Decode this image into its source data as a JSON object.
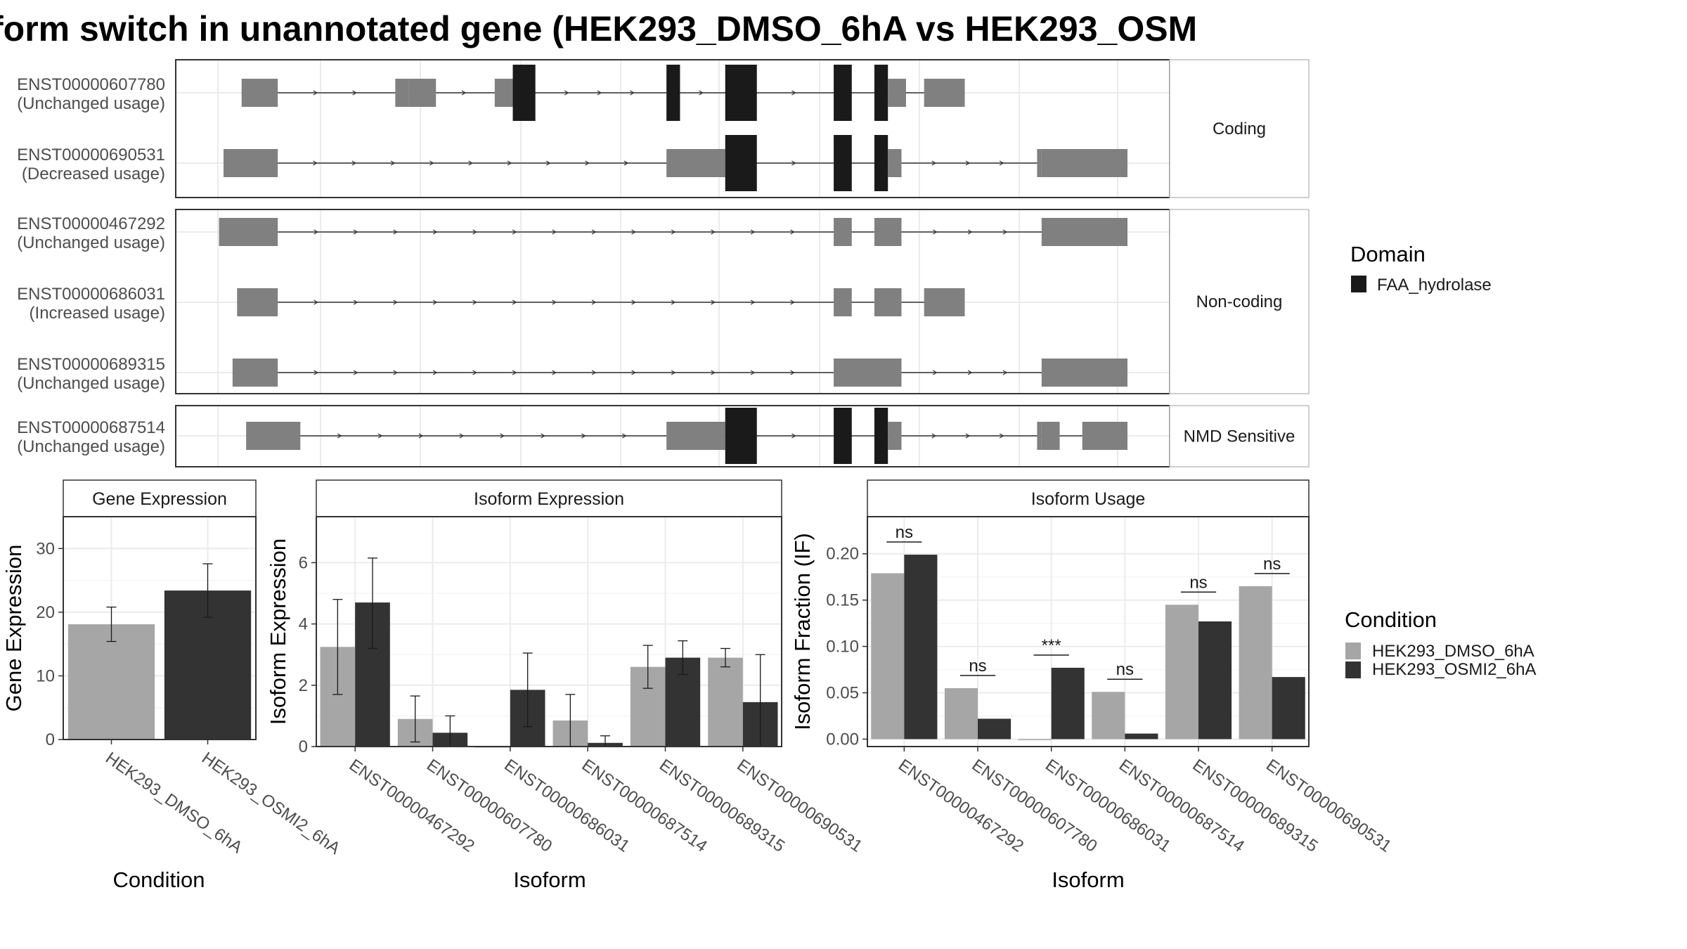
{
  "title": "form switch in unannotated gene (HEK293_DMSO_6hA vs HEK293_OSM",
  "colors": {
    "domain": "#1a1a1a",
    "exon": "#808080",
    "dmso": "#a6a6a6",
    "osmi": "#333333",
    "grid": "#ebebeb",
    "panel_border": "#333333",
    "strip_border": "#bfbfbf"
  },
  "structure": {
    "groups": [
      {
        "label": "Coding",
        "isoforms": [
          {
            "id": "ENST00000607780",
            "status": "(Unchanged usage)",
            "features": [
              {
                "start": 0.02,
                "end": 0.06,
                "kind": "exon"
              },
              {
                "start": 0.19,
                "end": 0.205,
                "kind": "exon"
              },
              {
                "start": 0.205,
                "end": 0.235,
                "kind": "exon"
              },
              {
                "start": 0.3,
                "end": 0.32,
                "kind": "exon"
              },
              {
                "start": 0.32,
                "end": 0.345,
                "kind": "domain"
              },
              {
                "start": 0.49,
                "end": 0.505,
                "kind": "domain"
              },
              {
                "start": 0.555,
                "end": 0.59,
                "kind": "domain"
              },
              {
                "start": 0.675,
                "end": 0.695,
                "kind": "domain"
              },
              {
                "start": 0.72,
                "end": 0.735,
                "kind": "domain"
              },
              {
                "start": 0.735,
                "end": 0.755,
                "kind": "exon"
              },
              {
                "start": 0.775,
                "end": 0.785,
                "kind": "exon"
              },
              {
                "start": 0.785,
                "end": 0.82,
                "kind": "exon"
              }
            ]
          },
          {
            "id": "ENST00000690531",
            "status": "(Decreased usage)",
            "features": [
              {
                "start": 0.0,
                "end": 0.06,
                "kind": "exon"
              },
              {
                "start": 0.49,
                "end": 0.555,
                "kind": "exon"
              },
              {
                "start": 0.555,
                "end": 0.59,
                "kind": "domain"
              },
              {
                "start": 0.675,
                "end": 0.695,
                "kind": "domain"
              },
              {
                "start": 0.72,
                "end": 0.735,
                "kind": "domain"
              },
              {
                "start": 0.735,
                "end": 0.75,
                "kind": "exon"
              },
              {
                "start": 0.9,
                "end": 0.905,
                "kind": "exon"
              },
              {
                "start": 0.905,
                "end": 1.0,
                "kind": "exon"
              }
            ]
          }
        ]
      },
      {
        "label": "Non-coding",
        "isoforms": [
          {
            "id": "ENST00000467292",
            "status": "(Unchanged usage)",
            "features": [
              {
                "start": -0.005,
                "end": 0.06,
                "kind": "exon"
              },
              {
                "start": 0.675,
                "end": 0.695,
                "kind": "exon"
              },
              {
                "start": 0.72,
                "end": 0.75,
                "kind": "exon"
              },
              {
                "start": 0.905,
                "end": 1.0,
                "kind": "exon"
              }
            ]
          },
          {
            "id": "ENST00000686031",
            "status": "(Increased usage)",
            "features": [
              {
                "start": 0.015,
                "end": 0.06,
                "kind": "exon"
              },
              {
                "start": 0.675,
                "end": 0.695,
                "kind": "exon"
              },
              {
                "start": 0.72,
                "end": 0.75,
                "kind": "exon"
              },
              {
                "start": 0.775,
                "end": 0.82,
                "kind": "exon"
              }
            ]
          },
          {
            "id": "ENST00000689315",
            "status": "(Unchanged usage)",
            "features": [
              {
                "start": 0.01,
                "end": 0.06,
                "kind": "exon"
              },
              {
                "start": 0.675,
                "end": 0.75,
                "kind": "exon"
              },
              {
                "start": 0.905,
                "end": 1.0,
                "kind": "exon"
              }
            ]
          }
        ]
      },
      {
        "label": "NMD Sensitive",
        "isoforms": [
          {
            "id": "ENST00000687514",
            "status": "(Unchanged usage)",
            "features": [
              {
                "start": 0.025,
                "end": 0.085,
                "kind": "exon"
              },
              {
                "start": 0.49,
                "end": 0.555,
                "kind": "exon"
              },
              {
                "start": 0.555,
                "end": 0.59,
                "kind": "domain"
              },
              {
                "start": 0.675,
                "end": 0.695,
                "kind": "domain"
              },
              {
                "start": 0.72,
                "end": 0.735,
                "kind": "domain"
              },
              {
                "start": 0.735,
                "end": 0.75,
                "kind": "exon"
              },
              {
                "start": 0.9,
                "end": 0.905,
                "kind": "exon"
              },
              {
                "start": 0.905,
                "end": 0.925,
                "kind": "exon"
              },
              {
                "start": 0.95,
                "end": 1.0,
                "kind": "exon"
              }
            ]
          }
        ]
      }
    ]
  },
  "legends": {
    "domain": {
      "title": "Domain",
      "items": [
        "FAA_hydrolase"
      ]
    },
    "condition": {
      "title": "Condition",
      "items": [
        "HEK293_DMSO_6hA",
        "HEK293_OSMI2_6hA"
      ]
    }
  },
  "chart_data": [
    {
      "type": "bar",
      "title": "Gene Expression",
      "xlabel": "Condition",
      "ylabel": "Gene Expression",
      "ylim": [
        0,
        35
      ],
      "yticks": [
        0,
        10,
        20,
        30
      ],
      "categories": [
        "HEK293_DMSO_6hA",
        "HEK293_OSMI2_6hA"
      ],
      "values": [
        18.1,
        23.4
      ],
      "errors": [
        [
          15.4,
          20.8
        ],
        [
          19.2,
          27.6
        ]
      ]
    },
    {
      "type": "bar",
      "title": "Isoform Expression",
      "xlabel": "Isoform",
      "ylabel": "Isoform Expression",
      "ylim": [
        0,
        7.5
      ],
      "yticks": [
        0,
        2,
        4,
        6
      ],
      "categories": [
        "ENST00000467292",
        "ENST00000607780",
        "ENST00000686031",
        "ENST00000687514",
        "ENST00000689315",
        "ENST00000690531"
      ],
      "series": [
        {
          "name": "HEK293_DMSO_6hA",
          "values": [
            3.25,
            0.9,
            0.0,
            0.85,
            2.6,
            2.9
          ],
          "errors": [
            [
              1.7,
              4.8
            ],
            [
              0.15,
              1.65
            ],
            [
              0.0,
              0.0
            ],
            [
              0.0,
              1.7
            ],
            [
              1.9,
              3.3
            ],
            [
              2.6,
              3.2
            ]
          ]
        },
        {
          "name": "HEK293_OSMI2_6hA",
          "values": [
            4.7,
            0.45,
            1.85,
            0.12,
            2.9,
            1.45
          ],
          "errors": [
            [
              3.2,
              6.15
            ],
            [
              0.0,
              1.0
            ],
            [
              0.65,
              3.05
            ],
            [
              0.0,
              0.35
            ],
            [
              2.35,
              3.45
            ],
            [
              0.0,
              3.0
            ]
          ]
        }
      ]
    },
    {
      "type": "bar",
      "title": "Isoform Usage",
      "xlabel": "Isoform",
      "ylabel": "Isoform Fraction (IF)",
      "ylim": [
        -0.008,
        0.24
      ],
      "yticks": [
        0.0,
        0.05,
        0.1,
        0.15,
        0.2
      ],
      "categories": [
        "ENST00000467292",
        "ENST00000607780",
        "ENST00000686031",
        "ENST00000687514",
        "ENST00000689315",
        "ENST00000690531"
      ],
      "series": [
        {
          "name": "HEK293_DMSO_6hA",
          "values": [
            0.179,
            0.055,
            0.0,
            0.051,
            0.145,
            0.165
          ]
        },
        {
          "name": "HEK293_OSMI2_6hA",
          "values": [
            0.199,
            0.022,
            0.077,
            0.006,
            0.127,
            0.067
          ]
        }
      ],
      "significance": [
        "ns",
        "ns",
        "***",
        "ns",
        "ns",
        "ns"
      ]
    }
  ]
}
